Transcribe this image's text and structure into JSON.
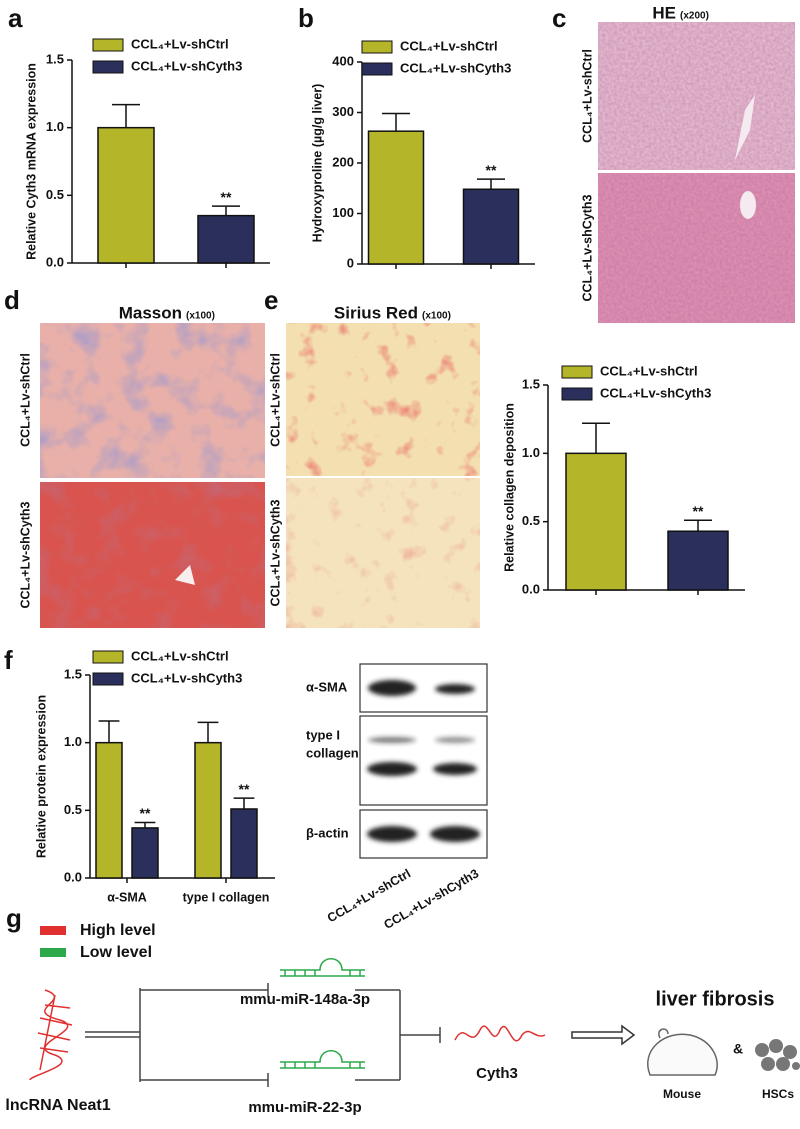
{
  "panel_labels": [
    "a",
    "b",
    "c",
    "d",
    "e",
    "f",
    "g"
  ],
  "chart_data": [
    {
      "type": "bar",
      "y_label": "Relative Cyth3 mRNA expression",
      "categories": [
        null
      ],
      "series": [
        {
          "name": "CCL₄+Lv-shCtrl",
          "color": "#b5b52a",
          "values": [
            1.0
          ],
          "errors": [
            0.17
          ]
        },
        {
          "name": "CCL₄+Lv-shCyth3",
          "color": "#2b2f5c",
          "values": [
            0.35
          ],
          "errors": [
            0.07
          ],
          "annotations": [
            "**"
          ]
        }
      ],
      "ylim": [
        0,
        1.5
      ],
      "yticks": [
        {
          "value": 0,
          "label": "0.0"
        },
        0.5,
        {
          "value": 1,
          "label": "1.0"
        },
        1.5
      ]
    },
    {
      "type": "bar",
      "y_label": "Hydroxyproline (µg/g liver)",
      "categories": [
        null
      ],
      "series": [
        {
          "name": "CCL₄+Lv-shCtrl",
          "color": "#b5b52a",
          "values": [
            263
          ],
          "errors": [
            35
          ]
        },
        {
          "name": "CCL₄+Lv-shCyth3",
          "color": "#2b2f5c",
          "values": [
            148
          ],
          "errors": [
            20
          ],
          "annotations": [
            "**"
          ]
        }
      ],
      "ylim": [
        0,
        400
      ],
      "yticks": [
        0,
        100,
        200,
        300,
        400
      ]
    },
    {
      "type": "bar",
      "y_label": "Relative collagen deposition",
      "categories": [
        null
      ],
      "series": [
        {
          "name": "CCL₄+Lv-shCtrl",
          "color": "#b5b52a",
          "values": [
            1.0
          ],
          "errors": [
            0.22
          ]
        },
        {
          "name": "CCL₄+Lv-shCyth3",
          "color": "#2b2f5c",
          "values": [
            0.43
          ],
          "errors": [
            0.08
          ],
          "annotations": [
            "**"
          ]
        }
      ],
      "ylim": [
        0,
        1.5
      ],
      "yticks": [
        {
          "value": 0,
          "label": "0.0"
        },
        0.5,
        {
          "value": 1,
          "label": "1.0"
        },
        1.5
      ]
    },
    {
      "type": "bar",
      "y_label": "Relative protein expression",
      "categories": [
        "α-SMA",
        "type I collagen"
      ],
      "series": [
        {
          "name": "CCL₄+Lv-shCtrl",
          "color": "#b5b52a",
          "values": [
            1.0,
            1.0
          ],
          "errors": [
            0.16,
            0.15
          ]
        },
        {
          "name": "CCL₄+Lv-shCyth3",
          "color": "#2b2f5c",
          "values": [
            0.37,
            0.51
          ],
          "errors": [
            0.04,
            0.08
          ],
          "annotations": [
            "**",
            "**"
          ]
        }
      ],
      "ylim": [
        0,
        1.5
      ],
      "yticks": [
        {
          "value": 0,
          "label": "0.0"
        },
        0.5,
        {
          "value": 1,
          "label": "1.0"
        },
        1.5
      ]
    }
  ],
  "histology": {
    "he": {
      "title": "HE",
      "magnification": "(x200)"
    },
    "masson": {
      "title": "Masson",
      "magnification": "(x100)"
    },
    "sirius": {
      "title": "Sirius Red",
      "magnification": "(x100)"
    },
    "row_labels": [
      "CCL₄+Lv-shCtrl",
      "CCL₄+Lv-shCyth3"
    ]
  },
  "blot": {
    "rows": [
      [
        "α-SMA"
      ],
      [
        "type I",
        "collagen"
      ],
      [
        "β-actin"
      ]
    ],
    "lanes": [
      "CCL₄+Lv-shCtrl",
      "CCL₄+Lv-shCyth3"
    ]
  },
  "diagram": {
    "legend": [
      {
        "label": "High level",
        "color": "#e03030"
      },
      {
        "label": "Low level",
        "color": "#2aa84a"
      }
    ],
    "lncrna": "lncRNA Neat1",
    "mir1": "mmu-miR-148a-3p",
    "mir2": "mmu-miR-22-3p",
    "target": "Cyth3",
    "outcome": "liver fibrosis",
    "mouse": "Mouse",
    "and": "&",
    "hscs": "HSCs"
  }
}
